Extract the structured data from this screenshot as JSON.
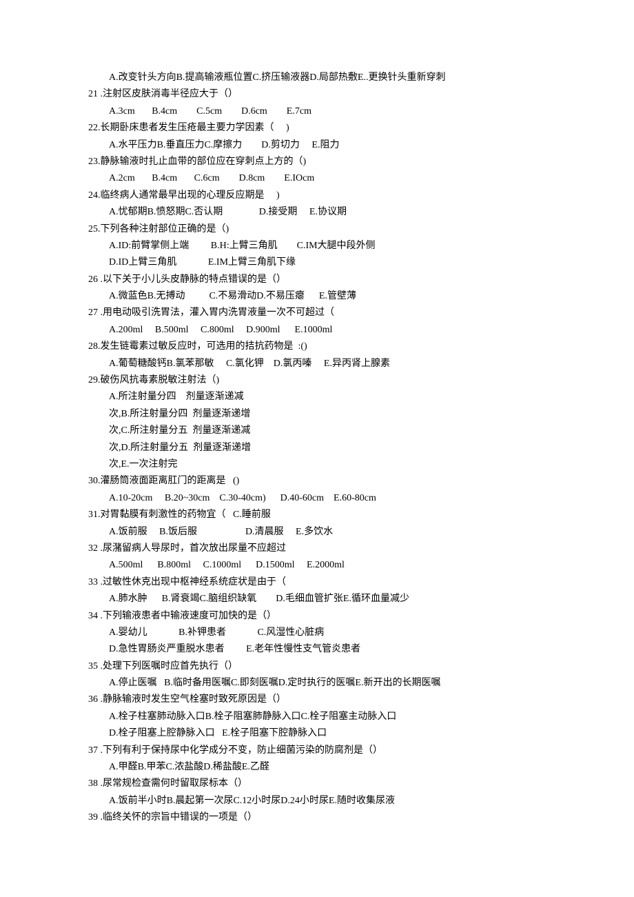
{
  "lines": [
    {
      "cls": "indent1",
      "text": "A.改变针头方向B.提高输液瓶位置C.挤压输液器D.局部热敷E..更换针头重新穿刺"
    },
    {
      "cls": "",
      "text": "21 .注射区皮肤消毒半径应大于（）"
    },
    {
      "cls": "indent1",
      "text": "A.3cm       B.4cm        C.5cm        D.6cm        E.7cm"
    },
    {
      "cls": "",
      "text": "22.长期卧床患者发生压疮最主要力学因素（     )"
    },
    {
      "cls": "indent1",
      "text": "A.水平压力B.垂直压力C.摩擦力        D.剪切力     E.阻力"
    },
    {
      "cls": "",
      "text": "23.静脉输液时扎止血带的部位应在穿刺点上方的（)"
    },
    {
      "cls": "indent1",
      "text": "A.2cm       B.4cm       C.6cm        D.8cm        E.IOcm"
    },
    {
      "cls": "",
      "text": "24.临终病人通常最早出现的心理反应期是     )"
    },
    {
      "cls": "indent1",
      "text": "A.忧郁期B.愤怒期C.否认期               D.接受期     E.协议期"
    },
    {
      "cls": "",
      "text": "25.下列各种注射部位正确的是（)"
    },
    {
      "cls": "indent1",
      "text": "A.ID:前臂掌侧上端         B.H:上臂三角肌        C.IM大腿中段外侧"
    },
    {
      "cls": "indent1",
      "text": "D.ID上臂三角肌             E.IM上臂三角肌下缘"
    },
    {
      "cls": "",
      "text": "26 .以下关于小儿头皮静脉的特点错误的是（）"
    },
    {
      "cls": "indent1",
      "text": "A.微蓝色B.无搏动          C.不易滑动D.不易压瘪      E.管壁薄"
    },
    {
      "cls": "",
      "text": "27 .用电动吸引洗胃法，灌入胃内洗胃液量一次不可超过（"
    },
    {
      "cls": "indent1",
      "text": "A.200ml     B.500ml     C.800ml     D.900ml      E.1000ml"
    },
    {
      "cls": "",
      "text": "28.发生链霉素过敏反应时，可选用的拮抗药物是  :()"
    },
    {
      "cls": "indent1",
      "text": "A.葡萄糖酸钙B.氯苯那敏     C.氯化钾    D.氯丙嗪     E.异丙肾上腺素"
    },
    {
      "cls": "",
      "text": "29.破伤风抗毒素脱敏注射法（)"
    },
    {
      "cls": "indent1",
      "text": "A.所注射量分四    剂量逐渐递减"
    },
    {
      "cls": "indent1",
      "text": "次,B.所注射量分四  剂量逐渐递增"
    },
    {
      "cls": "indent1",
      "text": "次,C.所注射量分五  剂量逐渐递减"
    },
    {
      "cls": "indent1",
      "text": "次,D.所注射量分五  剂量逐渐递增"
    },
    {
      "cls": "indent1",
      "text": "次,E.一次注射完"
    },
    {
      "cls": "",
      "text": "30.灌肠筒液面距离肛门的距离是   ()"
    },
    {
      "cls": "indent1",
      "text": "A.10-20cm     B.20~30cm    C.30-40cm)      D.40-60cm    E.60-80cm"
    },
    {
      "cls": "",
      "text": "31.对胃黏膜有刺激性的药物宜（   C.睡前服"
    },
    {
      "cls": "indent1",
      "text": "A.饭前服     B.饭后服                    D.清晨服     E.多饮水"
    },
    {
      "cls": "",
      "text": "32 .尿潴留病人导尿时，首次放出尿量不应超过"
    },
    {
      "cls": "indent1",
      "text": "A.500ml      B.800ml     C.1000ml      D.1500ml     E.2000ml"
    },
    {
      "cls": "",
      "text": "33 .过敏性休克出现中枢神经系统症状是由于（"
    },
    {
      "cls": "indent1",
      "text": "A.肺水肿      B.肾衰竭C.脑组织缺氧        D.毛细血管扩张E.循环血量减少"
    },
    {
      "cls": "",
      "text": "34 .下列输液患者中输液速度可加快的是（）"
    },
    {
      "cls": "indent1",
      "text": "A.婴幼儿             B.补钾患者             C.风湿性心脏病"
    },
    {
      "cls": "indent1",
      "text": "D.急性胃肠炎严重脱水患者         E.老年性慢性支气管炎患者"
    },
    {
      "cls": "",
      "text": "35 .处理下列医嘱时应首先执行（）"
    },
    {
      "cls": "indent1",
      "text": "A.停止医嘱   B.临时备用医嘱C.即刻医嘱D.定时执行的医嘱E.新开出的长期医嘱"
    },
    {
      "cls": "",
      "text": "36 .静脉输液时发生空气栓塞时致死原因是（）"
    },
    {
      "cls": "indent1",
      "text": "A.栓子柱塞肺动脉入口B.栓子阻塞肺静脉入口C.栓子阻塞主动脉入口"
    },
    {
      "cls": "indent1",
      "text": "D.栓子阻塞上腔静脉入口   E.栓子阻塞下腔静脉入口"
    },
    {
      "cls": "",
      "text": "37 .下列有利于保持尿中化学成分不变，防止细菌污染的防腐剂是（）"
    },
    {
      "cls": "indent1",
      "text": "A.甲醛B.甲苯C.浓盐酸D.稀盐酸E.乙醛"
    },
    {
      "cls": "",
      "text": "38 .尿常规检查需何时留取尿标本（）"
    },
    {
      "cls": "indent1",
      "text": "A.饭前半小时B.晨起第一次尿C.12小时尿D.24小时尿E.随时收集尿液"
    },
    {
      "cls": "",
      "text": "39 .临终关怀的宗旨中错误的一项是（）"
    }
  ]
}
